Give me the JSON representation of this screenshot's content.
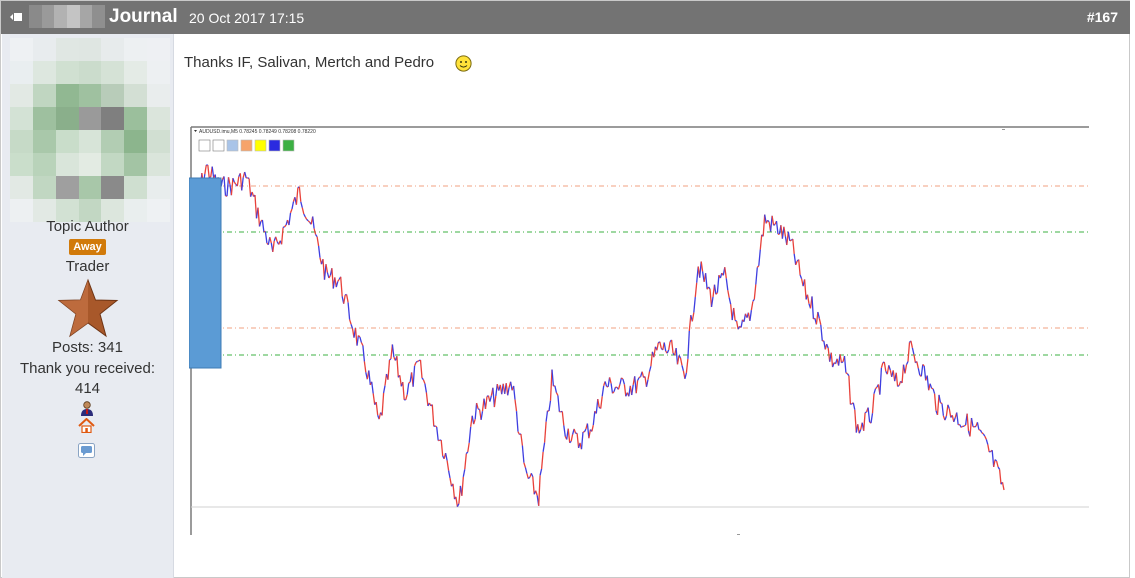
{
  "header": {
    "title": "Journal",
    "date": "20 Oct 2017 17:15",
    "post_number": "#167",
    "bg_color": "#737373"
  },
  "author": {
    "role": "Topic Author",
    "status_badge": "Away",
    "rank": "Trader",
    "posts": "Posts: 341",
    "thanks_label": "Thank you received:",
    "thanks_count": "414",
    "icons": [
      "user-icon",
      "home-icon",
      "message-icon"
    ]
  },
  "post": {
    "message": "Thanks IF, Salivan, Mertch and Pedro",
    "emoji": "smiley-icon"
  },
  "chart_data": {
    "type": "line",
    "title": "AUDUSD.imu,M5 0.78245 0.78249 0.78208 0.78220",
    "series_colors": [
      "#e8413a",
      "#3e3ee0"
    ],
    "hlines": [
      {
        "color": "#f0a080",
        "style": "dash-dot"
      },
      {
        "color": "#3cb043",
        "style": "dash-dot"
      },
      {
        "color": "#f0a080",
        "style": "dash-dot"
      },
      {
        "color": "#3cb043",
        "style": "dash-dot"
      }
    ],
    "toolbar_swatches": [
      "#ffffff",
      "#ffffff",
      "#a9c4e8",
      "#f6a36a",
      "#ffff00",
      "#2a2ae0",
      "#3cb043"
    ],
    "overlay_bar_color": "#5b9bd5",
    "price_path": [
      88,
      42,
      62,
      60,
      52,
      93,
      128,
      100,
      67,
      102,
      150,
      155,
      200,
      240,
      300,
      228,
      270,
      240,
      288,
      330,
      380,
      292,
      280,
      268,
      258,
      348,
      372,
      255,
      303,
      318,
      300,
      260,
      262,
      262,
      255,
      222,
      226,
      250,
      140,
      172,
      152,
      212,
      186,
      95,
      103,
      120,
      165,
      193,
      235,
      240,
      305,
      290,
      243,
      260,
      224,
      248,
      280,
      288,
      297,
      305,
      330,
      365
    ]
  }
}
